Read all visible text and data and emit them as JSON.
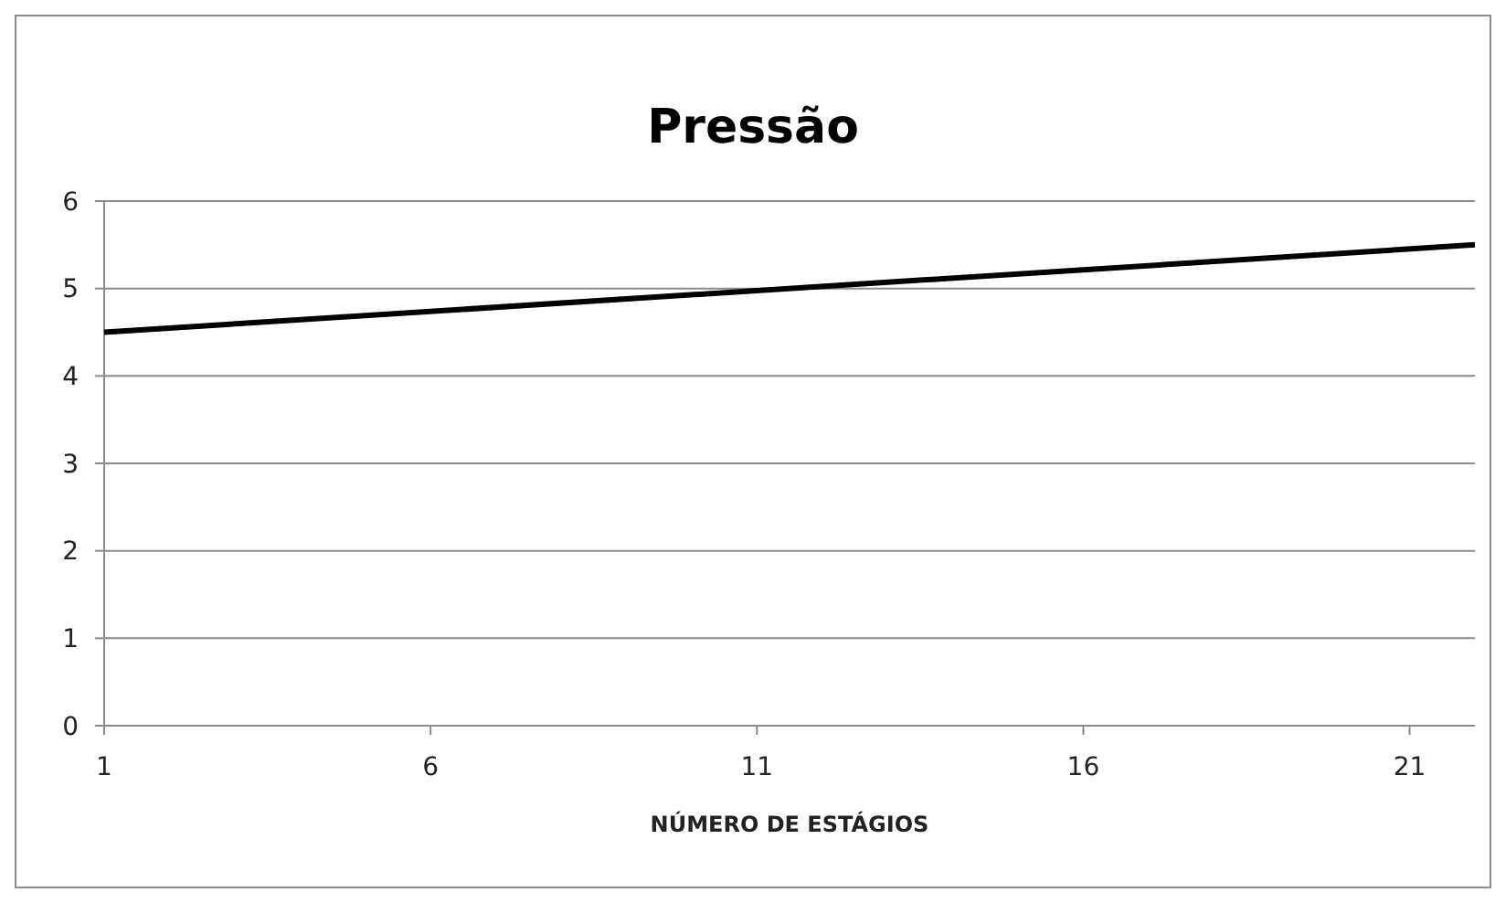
{
  "chart_data": {
    "type": "line",
    "title": "Pressão",
    "xlabel": "NÚMERO DE ESTÁGIOS",
    "x": [
      1,
      22
    ],
    "series": [
      {
        "color": "#000000",
        "values": [
          4.5,
          5.5
        ]
      }
    ],
    "xlim": [
      1,
      22
    ],
    "xticks": [
      1,
      6,
      11,
      16,
      21
    ],
    "ylim": [
      0,
      6
    ],
    "yticks": [
      0,
      1,
      2,
      3,
      4,
      5,
      6
    ],
    "grid": "y",
    "marker": "none",
    "line_style": "solid"
  }
}
